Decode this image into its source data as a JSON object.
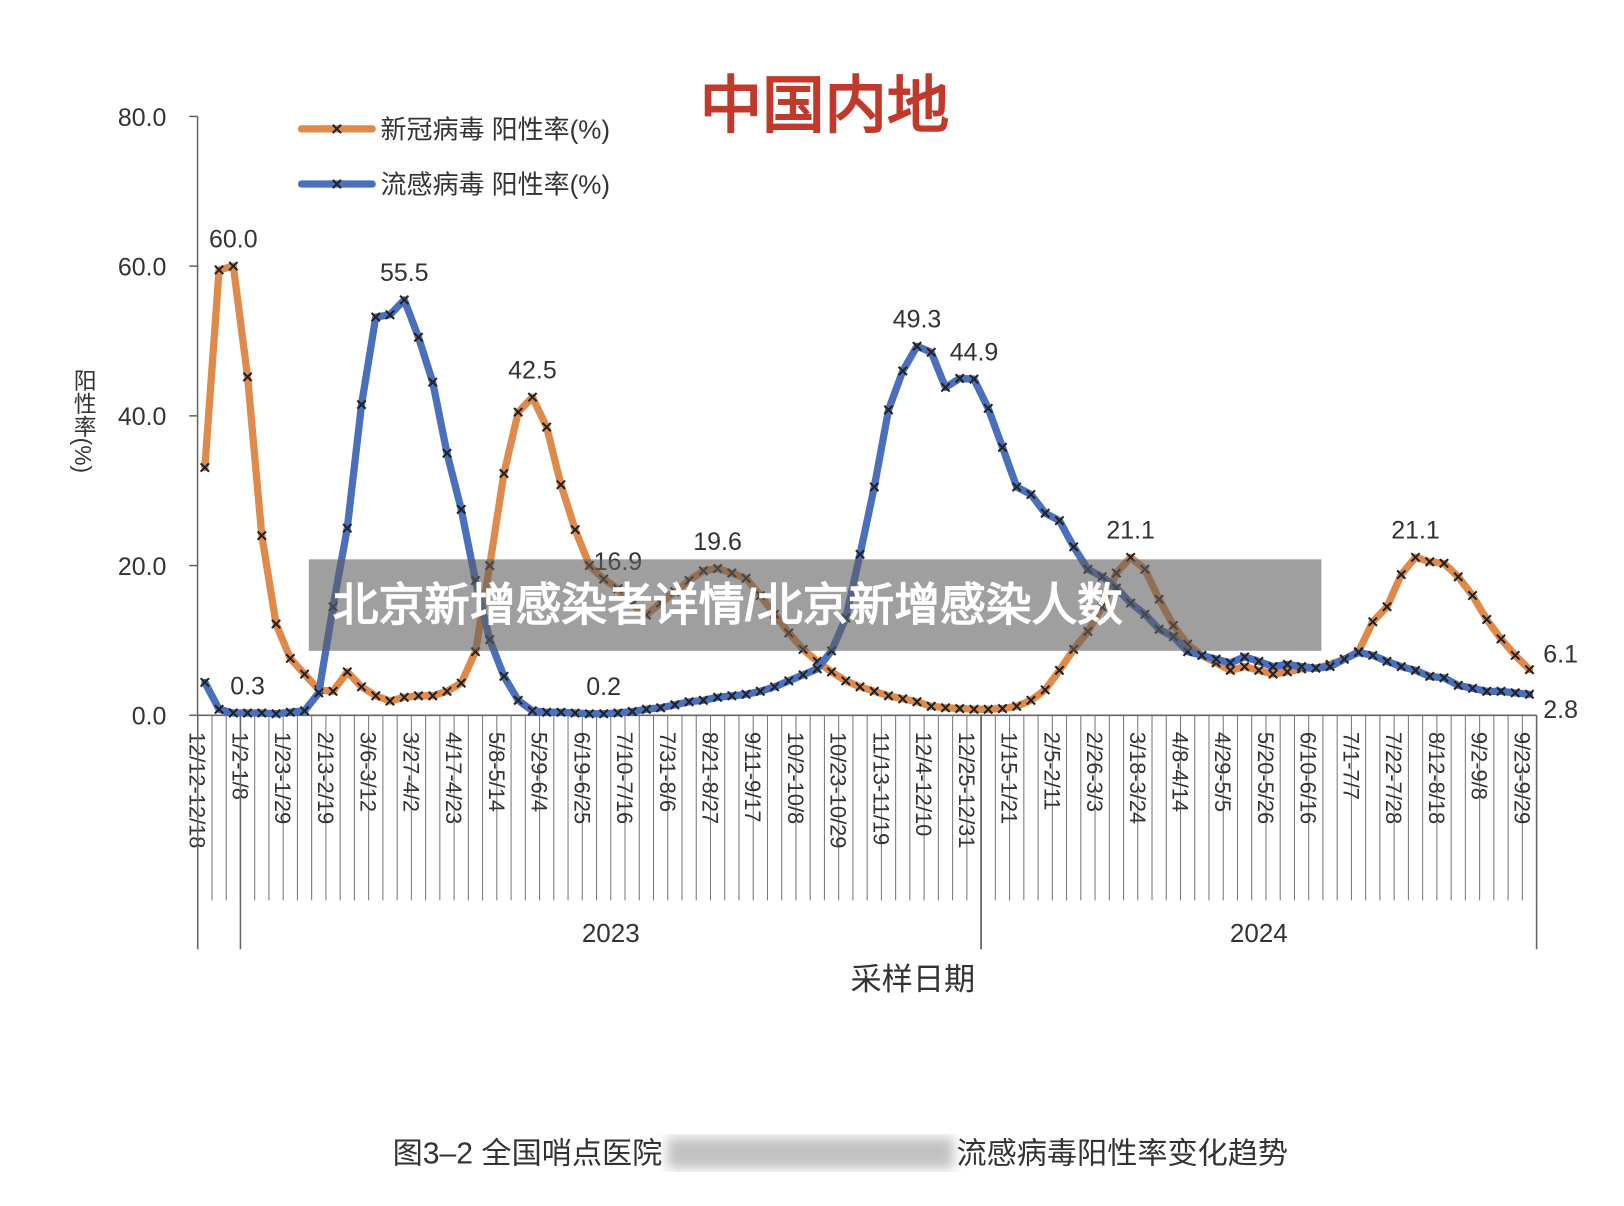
{
  "chart_data": {
    "type": "line",
    "title": "中国内地",
    "title_color": "#c0392b",
    "y_label": "阳性率(%)",
    "x_label": "采样日期",
    "ylim": [
      0,
      80
    ],
    "yticks": [
      {
        "value": 0,
        "label": "0.0"
      },
      {
        "value": 20,
        "label": "20.0"
      },
      {
        "value": 40,
        "label": "40.0"
      },
      {
        "value": 60,
        "label": "60.0"
      },
      {
        "value": 80,
        "label": "80.0"
      }
    ],
    "categories": [
      "12/12-12/18",
      null,
      null,
      "1/2-1/8",
      null,
      null,
      "1/23-1/29",
      null,
      null,
      "2/13-2/19",
      null,
      null,
      "3/6-3/12",
      null,
      null,
      "3/27-4/2",
      null,
      null,
      "4/17-4/23",
      null,
      null,
      "5/8-5/14",
      null,
      null,
      "5/29-6/4",
      null,
      null,
      "6/19-6/25",
      null,
      null,
      "7/10-7/16",
      null,
      null,
      "7/31-8/6",
      null,
      null,
      "8/21-8/27",
      null,
      null,
      "9/11-9/17",
      null,
      null,
      "10/2-10/8",
      null,
      null,
      "10/23-10/29",
      null,
      null,
      "11/13-11/19",
      null,
      null,
      "12/4-12/10",
      null,
      null,
      "12/25-12/31",
      null,
      null,
      "1/15-1/21",
      null,
      null,
      "2/5-2/11",
      null,
      null,
      "2/26-3/3",
      null,
      null,
      "3/18-3/24",
      null,
      null,
      "4/8-4/14",
      null,
      null,
      "4/29-5/5",
      null,
      null,
      "5/20-5/26",
      null,
      null,
      "6/10-6/16",
      null,
      null,
      "7/1-7/7",
      null,
      null,
      "7/22-7/28",
      null,
      null,
      "8/12-8/18",
      null,
      null,
      "9/2-9/8",
      null,
      null,
      "9/23-9/29"
    ],
    "year_groups": [
      {
        "label": "2023",
        "start": 3,
        "end": 54
      },
      {
        "label": "2024",
        "start": 55,
        "end": 93
      }
    ],
    "series": [
      {
        "name": "新冠病毒 阳性率(%)",
        "color": "#df8a4a",
        "values": [
          33.1,
          59.5,
          60.0,
          45.2,
          24.0,
          12.2,
          7.6,
          5.5,
          3.4,
          3.2,
          5.8,
          3.8,
          2.6,
          1.9,
          2.4,
          2.6,
          2.6,
          3.2,
          4.3,
          8.5,
          20.0,
          32.3,
          40.5,
          42.5,
          38.5,
          30.8,
          24.8,
          20.0,
          18.2,
          16.9,
          14.8,
          13.4,
          15.0,
          16.5,
          18.0,
          19.3,
          19.6,
          19.0,
          18.3,
          16.0,
          13.5,
          11.0,
          8.8,
          7.2,
          5.8,
          4.6,
          3.8,
          3.2,
          2.6,
          2.2,
          1.8,
          1.2,
          1.0,
          0.9,
          0.8,
          0.8,
          0.9,
          1.2,
          2.0,
          3.4,
          6.0,
          8.8,
          11.2,
          14.5,
          19.0,
          21.1,
          19.5,
          15.5,
          12.0,
          9.5,
          8.0,
          7.0,
          6.0,
          6.5,
          6.0,
          5.5,
          5.8,
          6.2,
          6.3,
          6.8,
          7.5,
          8.5,
          12.5,
          14.5,
          18.8,
          21.1,
          20.5,
          20.3,
          18.5,
          16.0,
          12.8,
          10.2,
          8.0,
          6.1
        ],
        "value_labels": [
          null,
          null,
          "60.0",
          null,
          null,
          null,
          null,
          null,
          null,
          null,
          null,
          null,
          null,
          null,
          null,
          null,
          null,
          null,
          null,
          null,
          null,
          null,
          null,
          "42.5",
          null,
          null,
          null,
          null,
          null,
          "16.9",
          null,
          null,
          null,
          null,
          null,
          null,
          "19.6",
          null,
          null,
          null,
          null,
          null,
          null,
          null,
          null,
          null,
          null,
          null,
          null,
          null,
          null,
          null,
          null,
          null,
          null,
          null,
          null,
          null,
          null,
          null,
          null,
          null,
          null,
          null,
          null,
          "21.1",
          null,
          null,
          null,
          null,
          null,
          null,
          null,
          null,
          null,
          null,
          null,
          null,
          null,
          null,
          null,
          null,
          null,
          null,
          null,
          "21.1",
          null,
          null,
          null,
          null,
          null,
          null,
          null,
          "6.1"
        ]
      },
      {
        "name": "流感病毒 阳性率(%)",
        "color": "#4a6fbd",
        "values": [
          4.4,
          0.8,
          0.3,
          0.3,
          0.3,
          0.2,
          0.4,
          0.6,
          3.0,
          14.5,
          25.0,
          41.5,
          53.2,
          53.5,
          55.5,
          50.5,
          44.5,
          35.0,
          27.5,
          18.0,
          10.1,
          5.2,
          2.0,
          0.6,
          0.4,
          0.4,
          0.3,
          0.2,
          0.2,
          0.3,
          0.5,
          0.8,
          1.0,
          1.4,
          1.8,
          2.0,
          2.4,
          2.6,
          2.8,
          3.2,
          3.8,
          4.6,
          5.4,
          6.2,
          8.6,
          13.0,
          21.5,
          30.5,
          40.8,
          46.0,
          49.3,
          48.5,
          43.8,
          45.0,
          44.9,
          41.0,
          35.8,
          30.5,
          29.5,
          27.0,
          26.0,
          22.5,
          19.5,
          18.5,
          17.0,
          15.0,
          13.5,
          11.5,
          10.5,
          8.5,
          8.0,
          7.5,
          7.0,
          7.8,
          7.2,
          6.5,
          6.8,
          6.5,
          6.3,
          6.5,
          7.5,
          8.4,
          8.0,
          7.2,
          6.5,
          6.0,
          5.2,
          5.0,
          4.0,
          3.6,
          3.2,
          3.2,
          3.0,
          2.8
        ],
        "value_labels": [
          null,
          null,
          null,
          "0.3",
          null,
          null,
          null,
          null,
          null,
          null,
          null,
          null,
          null,
          null,
          "55.5",
          null,
          null,
          null,
          null,
          null,
          null,
          null,
          null,
          null,
          null,
          null,
          null,
          null,
          "0.2",
          null,
          null,
          null,
          null,
          null,
          null,
          null,
          null,
          null,
          null,
          null,
          null,
          null,
          null,
          null,
          null,
          null,
          null,
          null,
          null,
          null,
          "49.3",
          null,
          null,
          null,
          "44.9",
          null,
          null,
          null,
          null,
          null,
          null,
          null,
          null,
          null,
          null,
          null,
          null,
          null,
          null,
          null,
          null,
          null,
          null,
          null,
          null,
          null,
          null,
          null,
          null,
          null,
          null,
          null,
          null,
          null,
          null,
          null,
          null,
          null,
          null,
          null,
          null,
          null,
          null,
          "2.8"
        ]
      }
    ],
    "banner": "北京新增感染者详情/北京新增感染人数",
    "caption_left": "图3–2 全国哨点医院",
    "caption_right": "流感病毒阳性率变化趋势"
  }
}
